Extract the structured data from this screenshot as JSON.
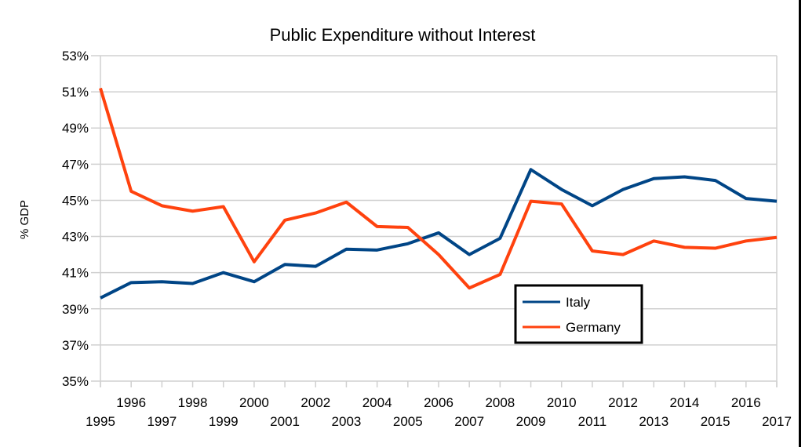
{
  "chart_data": {
    "type": "line",
    "title": "Public Expenditure without Interest",
    "xlabel": "",
    "ylabel": "% GDP",
    "ylim": [
      35,
      53
    ],
    "yticks": [
      35,
      37,
      39,
      41,
      43,
      45,
      47,
      49,
      51,
      53
    ],
    "ytick_format": "%",
    "grid": true,
    "legend_position": "lower-center-right",
    "x": [
      1995,
      1996,
      1997,
      1998,
      1999,
      2000,
      2001,
      2002,
      2003,
      2004,
      2005,
      2006,
      2007,
      2008,
      2009,
      2010,
      2011,
      2012,
      2013,
      2014,
      2015,
      2016,
      2017
    ],
    "series": [
      {
        "name": "Italy",
        "color": "#004586",
        "values": [
          39.6,
          40.45,
          40.5,
          40.4,
          41.0,
          40.5,
          41.45,
          41.35,
          42.3,
          42.25,
          42.6,
          43.2,
          42.0,
          42.9,
          46.7,
          45.6,
          44.7,
          45.6,
          46.2,
          46.3,
          46.1,
          45.1,
          44.95
        ]
      },
      {
        "name": "Germany",
        "color": "#ff420e",
        "values": [
          51.2,
          45.5,
          44.7,
          44.4,
          44.65,
          41.6,
          43.9,
          44.3,
          44.9,
          43.55,
          43.5,
          42.0,
          40.15,
          40.9,
          44.95,
          44.8,
          42.2,
          42.0,
          42.75,
          42.4,
          42.35,
          42.75,
          42.95
        ]
      }
    ]
  }
}
